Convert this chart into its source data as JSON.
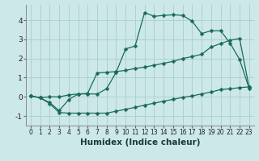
{
  "xlabel": "Humidex (Indice chaleur)",
  "bg_color": "#cce8e8",
  "grid_color": "#b0d0d0",
  "line_color": "#1a6b5a",
  "xlim": [
    -0.5,
    23.5
  ],
  "ylim": [
    -1.5,
    4.8
  ],
  "xticks": [
    0,
    1,
    2,
    3,
    4,
    5,
    6,
    7,
    8,
    9,
    10,
    11,
    12,
    13,
    14,
    15,
    16,
    17,
    18,
    19,
    20,
    21,
    22,
    23
  ],
  "yticks": [
    -1,
    0,
    1,
    2,
    3,
    4
  ],
  "line1_x": [
    0,
    1,
    2,
    3,
    4,
    5,
    6,
    7,
    8,
    9,
    10,
    11,
    12,
    13,
    14,
    15,
    16,
    17,
    18,
    19,
    20,
    21,
    22,
    23
  ],
  "line1_y": [
    0.05,
    -0.05,
    -0.3,
    -0.72,
    -0.15,
    0.15,
    0.15,
    0.15,
    0.42,
    1.28,
    2.5,
    2.65,
    4.4,
    4.2,
    4.25,
    4.28,
    4.25,
    3.95,
    3.3,
    3.45,
    3.45,
    2.8,
    1.95,
    0.45
  ],
  "line2_x": [
    0,
    1,
    2,
    3,
    4,
    5,
    6,
    7,
    8,
    9,
    10,
    11,
    12,
    13,
    14,
    15,
    16,
    17,
    18,
    19,
    20,
    21,
    22,
    23
  ],
  "line2_y": [
    0.05,
    -0.05,
    0.0,
    0.0,
    0.1,
    0.15,
    0.18,
    1.25,
    1.28,
    1.32,
    1.38,
    1.48,
    1.55,
    1.65,
    1.75,
    1.85,
    2.0,
    2.1,
    2.22,
    2.6,
    2.78,
    2.95,
    3.05,
    0.5
  ],
  "line3_x": [
    0,
    1,
    2,
    3,
    4,
    5,
    6,
    7,
    8,
    9,
    10,
    11,
    12,
    13,
    14,
    15,
    16,
    17,
    18,
    19,
    20,
    21,
    22,
    23
  ],
  "line3_y": [
    0.05,
    -0.05,
    -0.35,
    -0.82,
    -0.85,
    -0.85,
    -0.85,
    -0.85,
    -0.85,
    -0.75,
    -0.65,
    -0.55,
    -0.43,
    -0.33,
    -0.23,
    -0.13,
    -0.03,
    0.05,
    0.15,
    0.25,
    0.38,
    0.42,
    0.48,
    0.52
  ]
}
